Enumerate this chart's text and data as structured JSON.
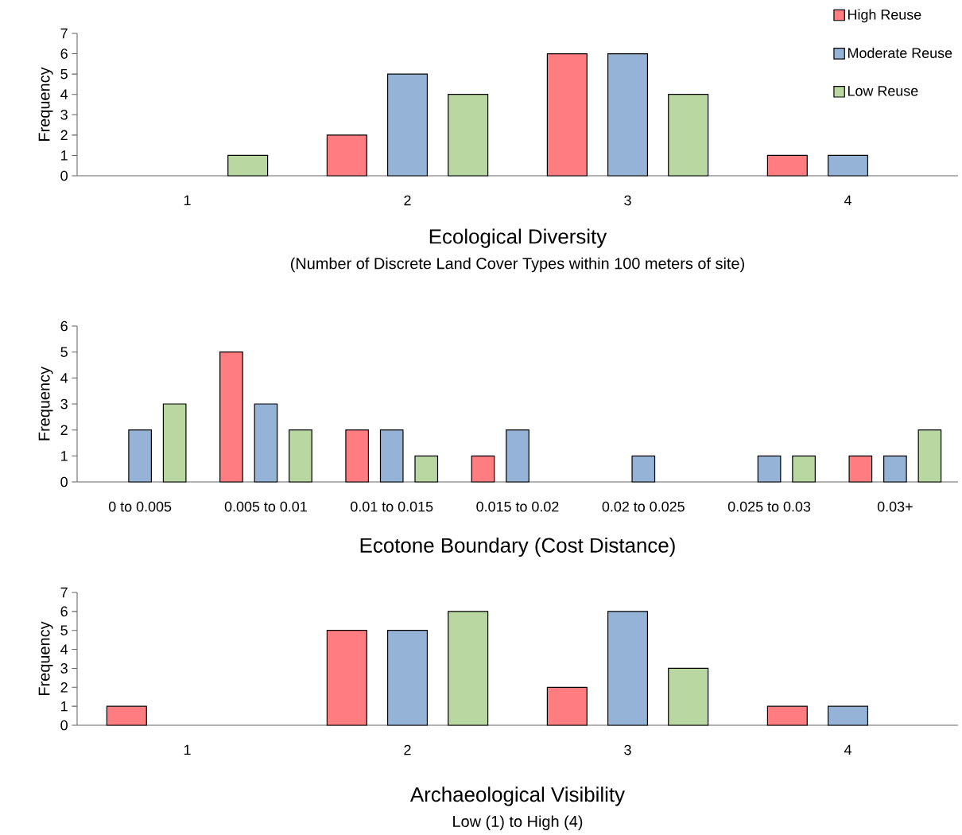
{
  "chart_data": [
    {
      "type": "bar",
      "xlabel": "Ecological Diversity",
      "ylabel": "Frequency",
      "annotations": [
        "(Number of Discrete Land Cover Types within 100 meters of site)"
      ],
      "categories": [
        "1",
        "2",
        "3",
        "4"
      ],
      "legend": "top right",
      "ylim": [
        0,
        7
      ],
      "yticks": [
        0,
        1,
        2,
        3,
        4,
        5,
        6,
        7
      ],
      "series": [
        {
          "name": "High Reuse",
          "color": "#ff7c80",
          "values": [
            0,
            2,
            6,
            1
          ]
        },
        {
          "name": "Moderate Reuse",
          "color": "#95b3d7",
          "values": [
            0,
            5,
            6,
            1
          ]
        },
        {
          "name": "Low Reuse",
          "color": "#b9d7a1",
          "values": [
            1,
            4,
            4,
            0
          ]
        }
      ]
    },
    {
      "type": "bar",
      "xlabel": "Ecotone Boundary (Cost Distance)",
      "ylabel": "Frequency",
      "categories": [
        "0 to 0.005",
        "0.005 to 0.01",
        "0.01 to 0.015",
        "0.015 to 0.02",
        "0.02 to 0.025",
        "0.025 to 0.03",
        "0.03+"
      ],
      "ylim": [
        0,
        6
      ],
      "yticks": [
        0,
        1,
        2,
        3,
        4,
        5,
        6
      ],
      "series": [
        {
          "color": "#ff7c80",
          "values": [
            0,
            5,
            2,
            1,
            0,
            0,
            1
          ]
        },
        {
          "color": "#95b3d7",
          "values": [
            2,
            3,
            2,
            2,
            1,
            1,
            1
          ]
        },
        {
          "color": "#b9d7a1",
          "values": [
            3,
            2,
            1,
            0,
            0,
            1,
            2
          ]
        }
      ]
    },
    {
      "type": "bar",
      "xlabel": "Archaeological Visibility",
      "ylabel": "Frequency",
      "annotations": [
        "Low (1) to High (4)"
      ],
      "categories": [
        "1",
        "2",
        "3",
        "4"
      ],
      "ylim": [
        0,
        7
      ],
      "yticks": [
        0,
        1,
        2,
        3,
        4,
        5,
        6,
        7
      ],
      "series": [
        {
          "color": "#ff7c80",
          "values": [
            1,
            5,
            2,
            1
          ]
        },
        {
          "color": "#95b3d7",
          "values": [
            0,
            5,
            6,
            1
          ]
        },
        {
          "color": "#b9d7a1",
          "values": [
            0,
            6,
            3,
            0
          ]
        }
      ]
    }
  ]
}
